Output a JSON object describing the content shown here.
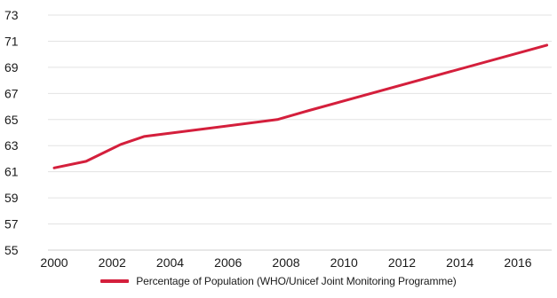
{
  "chart_data": {
    "type": "line",
    "title": "",
    "xlabel": "",
    "ylabel": "",
    "xlim": [
      2000,
      2017
    ],
    "ylim": [
      55,
      73
    ],
    "x_ticks": [
      2000,
      2002,
      2004,
      2006,
      2008,
      2010,
      2012,
      2014,
      2016
    ],
    "y_ticks": [
      55,
      57,
      59,
      61,
      63,
      65,
      67,
      69,
      71,
      73
    ],
    "grid": "horizontal",
    "legend_position": "bottom-center",
    "series": [
      {
        "name": "Percentage of Population (WHO/Unicef Joint Monitoring Programme)",
        "color": "#d41f3c",
        "x": [
          2000,
          2001.1,
          2002.3,
          2003.1,
          2007.7,
          2008.8,
          2017
        ],
        "y": [
          61.3,
          61.8,
          63.1,
          63.7,
          65.0,
          65.7,
          70.7
        ]
      }
    ]
  },
  "colors": {
    "grid": "#e3e3e3",
    "axis": "#cfcfcf",
    "text": "#1a1a1a"
  }
}
